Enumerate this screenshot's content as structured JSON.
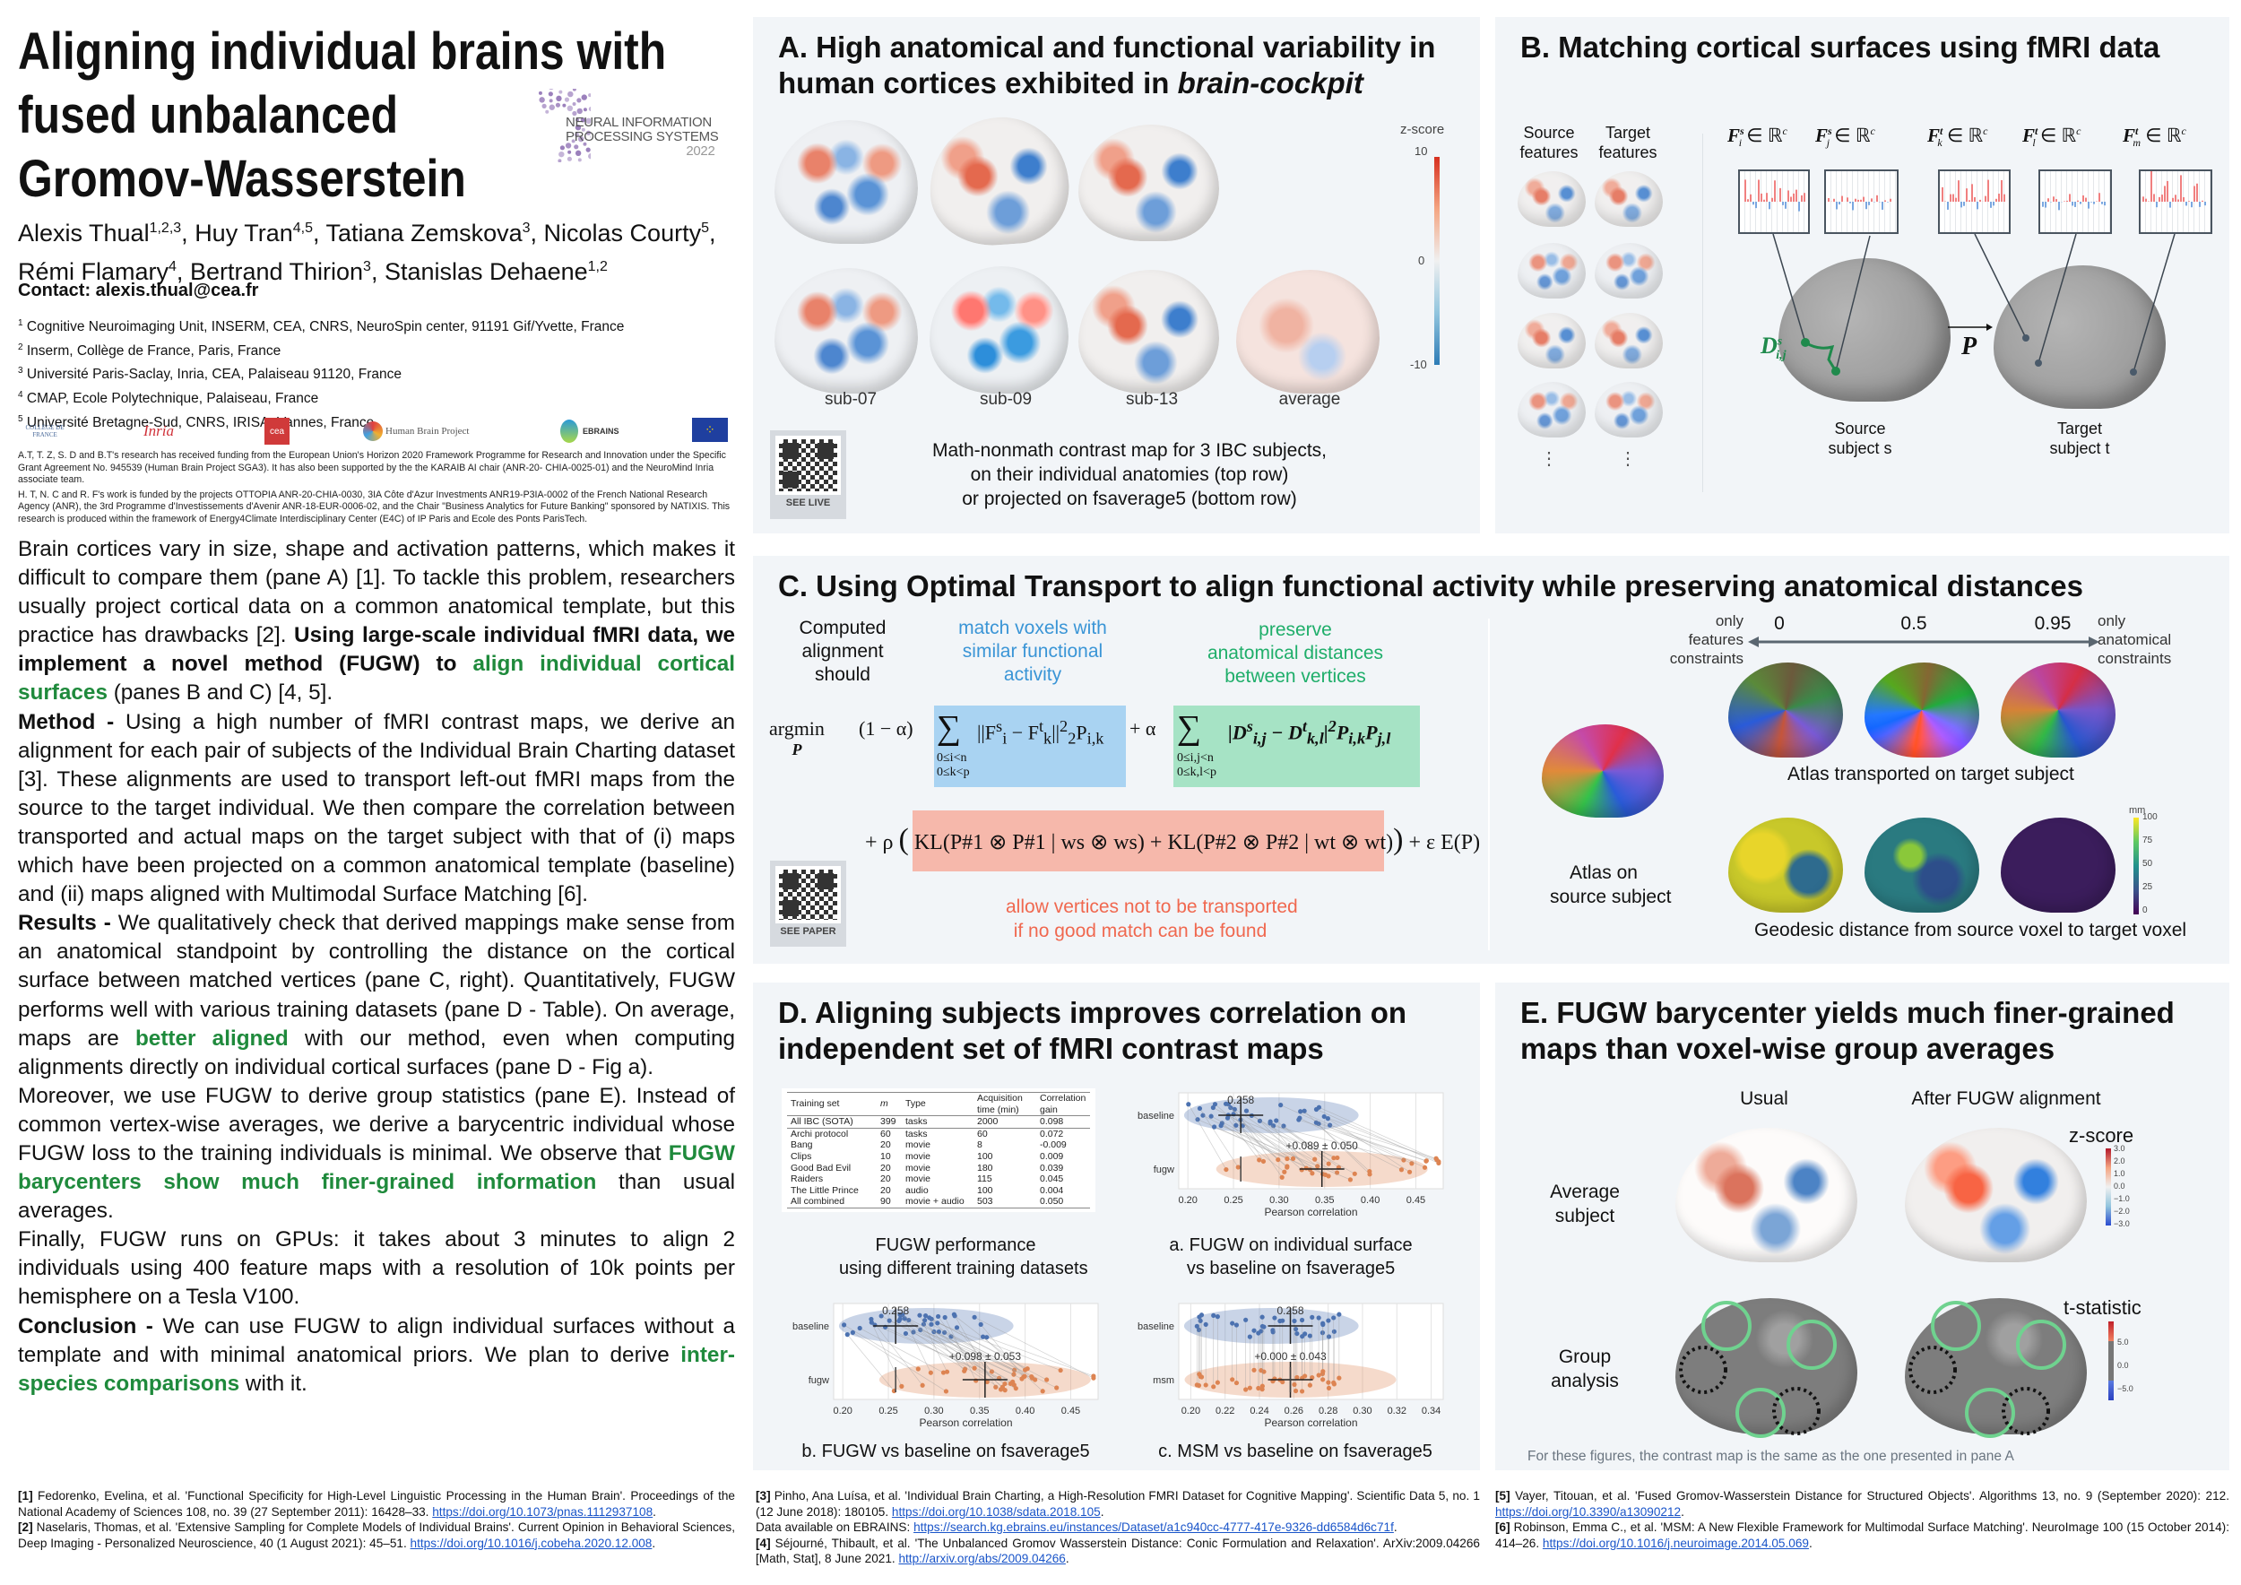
{
  "left": {
    "title_lines": [
      "Aligning individual brains with",
      "fused unbalanced",
      "Gromov-Wasserstein"
    ],
    "conference_logo": {
      "line1": "NEURAL INFORMATION",
      "line2": "PROCESSING SYSTEMS",
      "year": "2022",
      "color": "#8b6bb1"
    },
    "authors": [
      {
        "name": "Alexis Thual",
        "aff": "1,2,3"
      },
      {
        "name": "Huy Tran",
        "aff": "4,5"
      },
      {
        "name": "Tatiana Zemskova",
        "aff": "3"
      },
      {
        "name": "Nicolas Courty",
        "aff": "5"
      },
      {
        "name": "Rémi Flamary",
        "aff": "4"
      },
      {
        "name": "Bertrand Thirion",
        "aff": "3"
      },
      {
        "name": "Stanislas Dehaene",
        "aff": "1,2"
      }
    ],
    "contact": "Contact: alexis.thual@cea.fr",
    "affiliations": [
      {
        "n": "1",
        "text": "Cognitive Neuroimaging Unit, INSERM, CEA, CNRS, NeuroSpin center, 91191 Gif/Yvette, France"
      },
      {
        "n": "2",
        "text": "Inserm, Collège de France, Paris, France"
      },
      {
        "n": "3",
        "text": "Université Paris-Saclay, Inria, CEA, Palaiseau 91120, France"
      },
      {
        "n": "4",
        "text": "CMAP, Ecole Polytechnique, Palaiseau, France"
      },
      {
        "n": "5",
        "text": "Université Bretagne-Sud, CNRS, IRISA, Vannes, France"
      }
    ],
    "logos": [
      "COLLÈGE DE FRANCE",
      "Inria",
      "cea",
      "Human Brain Project",
      "EBRAINS",
      "European Union"
    ],
    "funding": [
      "A.T, T. Z, S. D and B.T's research has received funding from the European Union's Horizon 2020 Framework Programme for Research and Innovation under the Specific Grant Agreement No. 945539 (Human Brain Project SGA3). It has also been supported by the the KARAIB AI chair (ANR-20- CHIA-0025-01) and the NeuroMind Inria associate team.",
      "H. T, N. C and R. F's work is funded by the projects OTTOPIA ANR-20-CHIA-0030, 3IA Côte d'Azur Investments ANR19-P3IA-0002 of the French National Research Agency (ANR), the 3rd Programme d'Investissements d'Avenir ANR-18-EUR-0006-02, and the Chair \"Business Analytics for Future Banking\" sponsored by NATIXIS. This research is produced within the framework of Energy4Climate Interdisciplinary Center (E4C) of IP Paris and Ecole des Ponts ParisTech."
    ],
    "body": [
      [
        {
          "t": "Brain cortices vary in size, shape and activation patterns, which makes it difficult to compare them (pane A) [1]. To tackle this problem, researchers usually project cortical data on a common anatomical template, but this practice has drawbacks [2]. "
        },
        {
          "t": "Using large-scale individual fMRI data, we implement a novel method (FUGW) to ",
          "s": "b"
        },
        {
          "t": "align individual cortical surfaces",
          "s": "g"
        },
        {
          "t": " (panes B and C) [4, 5]."
        }
      ],
      [
        {
          "t": "Method - ",
          "s": "b"
        },
        {
          "t": "Using a high number of fMRI contrast maps, we derive an alignment for each pair of subjects of the Individual Brain Charting dataset [3]. These alignments are used to transport left-out fMRI maps from the source to the target individual. We then compare the correlation between transported and actual maps on the target subject with that of (i) maps which have been projected on a common anatomical template (baseline) and (ii) maps aligned with Multimodal Surface Matching [6]."
        }
      ],
      [
        {
          "t": "Results - ",
          "s": "b"
        },
        {
          "t": "We qualitatively check that derived mappings make sense from an anatomical standpoint by controlling the distance on the cortical surface between matched vertices (pane C, right). Quantitatively, FUGW performs well with various training datasets (pane D - Table). On average, maps are "
        },
        {
          "t": "better aligned",
          "s": "g"
        },
        {
          "t": " with our method, even when computing alignments directly on individual cortical surfaces (pane D - Fig a)."
        }
      ],
      [
        {
          "t": "Moreover, we use FUGW to derive group statistics (pane E). Instead of common vertex-wise averages, we derive a barycentric individual whose FUGW loss to the training individuals is minimal. We observe that "
        },
        {
          "t": "FUGW barycenters show much finer-grained information",
          "s": "g"
        },
        {
          "t": " than usual averages."
        }
      ],
      [
        {
          "t": "Finally, FUGW runs on GPUs: it takes about 3 minutes to align 2 individuals using 400 feature maps with a resolution of 10k points per hemisphere on a Tesla V100."
        }
      ],
      [
        {
          "t": "Conclusion - ",
          "s": "b"
        },
        {
          "t": "We can use FUGW to align individual surfaces without a template and with minimal anatomical priors. We plan to derive "
        },
        {
          "t": "inter-species comparisons",
          "s": "g"
        },
        {
          "t": " with it."
        }
      ]
    ]
  },
  "paneA": {
    "title_lines": [
      "A. High anatomical and functional variability in",
      "human cortices exhibited in "
    ],
    "title_italic": "brain-cockpit",
    "subjects": [
      "sub-07",
      "sub-09",
      "sub-13",
      "average"
    ],
    "colorbar": {
      "label": "z-score",
      "max": "10",
      "mid": "0",
      "min": "-10"
    },
    "qr_label": "SEE LIVE",
    "caption": [
      "Math-nonmath contrast map for 3 IBC subjects,",
      "on their individual anatomies (top row)",
      "or projected on fsaverage5 (bottom row)"
    ]
  },
  "paneB": {
    "title": "B. Matching cortical surfaces using fMRI data",
    "source_features": [
      "Source",
      "features"
    ],
    "target_features": [
      "Target",
      "features"
    ],
    "ellipsis": "⋮",
    "feature_labels": [
      {
        "base": "F",
        "sub": "i",
        "sup": "s",
        "rest": " ∈ ℝ",
        "exp": "c"
      },
      {
        "base": "F",
        "sub": "j",
        "sup": "s",
        "rest": " ∈ ℝ",
        "exp": "c"
      },
      {
        "base": "F",
        "sub": "k",
        "sup": "t",
        "rest": " ∈ ℝ",
        "exp": "c"
      },
      {
        "base": "F",
        "sub": "l",
        "sup": "t",
        "rest": " ∈ ℝ",
        "exp": "c"
      },
      {
        "base": "F",
        "sub": "m",
        "sup": "t",
        "rest": " ∈ ℝ",
        "exp": "c"
      }
    ],
    "distance_label": {
      "base": "D",
      "sub": "i,j",
      "sup": "s"
    },
    "transport_label": "P",
    "source_subject": [
      "Source",
      "subject s"
    ],
    "target_subject": [
      "Target",
      "subject t"
    ],
    "colors": {
      "green": "#1f8a4c",
      "red": "#f08080",
      "blue": "#7aa7e0"
    }
  },
  "paneC": {
    "title": "C. Using Optimal Transport to align functional activity while preserving anatomical distances",
    "computed": [
      "Computed",
      "alignment",
      "should"
    ],
    "match_text": [
      "match voxels with",
      "similar functional",
      "activity"
    ],
    "preserve_text": [
      "preserve",
      "anatomical distances",
      "between vertices"
    ],
    "allow_text": [
      "allow vertices not to be transported",
      "if no good match can be found"
    ],
    "formula": {
      "argmin": "argmin",
      "argmin_sub": "P",
      "one_minus_alpha": "(1 − α)",
      "wass_term": "||F",
      "wass_range": [
        "0≤i<n",
        "0≤k<p"
      ],
      "plus_alpha": "+ α",
      "gw_range": [
        "0≤i,j<n",
        "0≤k,l<p"
      ],
      "plus_rho": "+ ρ",
      "kl1": "KL(P#1 ⊗ P#1 | ws ⊗ ws)",
      "plus": "+",
      "kl2": "KL(P#2 ⊗ P#2 | wt ⊗ wt)",
      "entropy": "+ ε E(P)"
    },
    "qr_label": "SEE PAPER",
    "only_features": [
      "only",
      "features",
      "constraints"
    ],
    "only_anatomical": [
      "only",
      "anatomical",
      "constraints"
    ],
    "alphas": [
      "0",
      "0.5",
      "0.95"
    ],
    "atlas_source": [
      "Atlas on",
      "source subject"
    ],
    "atlas_transported": "Atlas transported on target subject",
    "geodesic": "Geodesic distance from source voxel  to target voxel",
    "mm_colorbar": {
      "unit": "mm",
      "ticks": [
        "100",
        "75",
        "50",
        "25",
        "0"
      ]
    },
    "colors": {
      "blue_box": "#a9d3f2",
      "green_box": "#a6e3c5",
      "red_box": "#f6b8ab",
      "blue_text": "#3a95d6",
      "green_text": "#1fae6a",
      "red_text": "#f0684f"
    }
  },
  "paneD": {
    "title_lines": [
      "D. Aligning subjects improves correlation on",
      "independent set of fMRI contrast maps"
    ],
    "table": {
      "headers": [
        "Training set",
        "m",
        "Type",
        "Acquisition time (min)",
        "Correlation gain"
      ],
      "rows": [
        [
          "All IBC (SOTA)",
          "399",
          "tasks",
          "2000",
          "0.098"
        ],
        [
          "Archi protocol",
          "60",
          "tasks",
          "60",
          "0.072"
        ],
        [
          "Bang",
          "20",
          "movie",
          "8",
          "-0.009"
        ],
        [
          "Clips",
          "10",
          "movie",
          "100",
          "0.009"
        ],
        [
          "Good Bad Evil",
          "20",
          "movie",
          "180",
          "0.039"
        ],
        [
          "Raiders",
          "20",
          "movie",
          "115",
          "0.045"
        ],
        [
          "The Little Prince",
          "20",
          "audio",
          "100",
          "0.004"
        ],
        [
          "All combined",
          "90",
          "movie + audio",
          "503",
          "0.050"
        ]
      ]
    },
    "table_caption": [
      "FUGW performance",
      "using different training datasets"
    ],
    "plots": [
      {
        "id": "a",
        "rows": [
          "baseline",
          "fugw"
        ],
        "baseline_mean": "0.258",
        "gain": "+0.089 ± 0.050",
        "xlabel": "Pearson correlation",
        "xticks": [
          "0.20",
          "0.25",
          "0.30",
          "0.35",
          "0.40",
          "0.45"
        ],
        "xlim": [
          0.19,
          0.48
        ],
        "means": [
          0.258,
          0.347
        ],
        "caption": [
          "a.  FUGW on individual surface",
          "vs baseline on fsaverage5"
        ]
      },
      {
        "id": "b",
        "rows": [
          "baseline",
          "fugw"
        ],
        "baseline_mean": "0.258",
        "gain": "+0.098 ± 0.053",
        "xlabel": "Pearson correlation",
        "xticks": [
          "0.20",
          "0.25",
          "0.30",
          "0.35",
          "0.40",
          "0.45"
        ],
        "xlim": [
          0.19,
          0.48
        ],
        "means": [
          0.258,
          0.356
        ],
        "caption": [
          "b. FUGW vs baseline on fsaverage5"
        ]
      },
      {
        "id": "c",
        "rows": [
          "baseline",
          "msm"
        ],
        "baseline_mean": "0.258",
        "gain": "+0.000 ± 0.043",
        "xlabel": "Pearson correlation",
        "xticks": [
          "0.20",
          "0.22",
          "0.24",
          "0.26",
          "0.28",
          "0.30",
          "0.32",
          "0.34"
        ],
        "xlim": [
          0.193,
          0.347
        ],
        "means": [
          0.258,
          0.258
        ],
        "caption": [
          "c. MSM vs baseline on fsaverage5"
        ]
      }
    ],
    "colors": {
      "baseline": "#4c72b0",
      "aligned": "#dd8452"
    }
  },
  "paneE": {
    "title_lines": [
      "E. FUGW barycenter yields much finer-grained",
      "maps than voxel-wise group averages"
    ],
    "columns": [
      "Usual",
      "After FUGW alignment"
    ],
    "rows": [
      [
        "Average",
        "subject"
      ],
      [
        "Group",
        "analysis"
      ]
    ],
    "zscore": {
      "label": "z-score",
      "ticks": [
        "3.0",
        "2.0",
        "1.0",
        "0.0",
        "−1.0",
        "−2.0",
        "−3.0"
      ]
    },
    "tstat": {
      "label": "t-statistic",
      "ticks": [
        "5.0",
        "0.0",
        "−5.0"
      ]
    },
    "footnote": "For these figures, the contrast map is the same as the one presented in pane A",
    "colors": {
      "circle_green": "#6fd28f",
      "circle_dotted": "#111111"
    }
  },
  "references": [
    [
      {
        "n": "[1]",
        "text": " Fedorenko, Evelina, et al. 'Functional Specificity for High-Level Linguistic Processing in the Human Brain'. Proceedings of the National Academy of Sciences 108, no. 39 (27 September 2011): 16428–33. ",
        "link": "https://doi.org/10.1073/pnas.1112937108"
      },
      {
        "n": "[2]",
        "text": " Naselaris, Thomas, et al. 'Extensive Sampling for Complete Models of Individual Brains'. Current Opinion in Behavioral Sciences, Deep Imaging - Personalized Neuroscience, 40 (1 August 2021): 45–51. ",
        "link": "https://doi.org/10.1016/j.cobeha.2020.12.008"
      }
    ],
    [
      {
        "n": "[3]",
        "text": " Pinho, Ana Luísa, et al. 'Individual Brain Charting, a High-Resolution FMRI Dataset for Cognitive Mapping'. Scientific Data 5, no. 1 (12 June 2018): 180105. ",
        "link": "https://doi.org/10.1038/sdata.2018.105"
      },
      {
        "n": "",
        "text": "Data available on EBRAINS: ",
        "link": "https://search.kg.ebrains.eu/instances/Dataset/a1c940cc-4777-417e-9326-dd6584d6c71f"
      },
      {
        "n": "[4]",
        "text": " Séjourné, Thibault, et al. 'The Unbalanced Gromov Wasserstein Distance: Conic Formulation and Relaxation'. ArXiv:2009.04266 [Math, Stat], 8 June 2021. ",
        "link": "http://arxiv.org/abs/2009.04266"
      }
    ],
    [
      {
        "n": "[5]",
        "text": " Vayer, Titouan, et al. 'Fused Gromov-Wasserstein Distance for Structured Objects'. Algorithms 13, no. 9 (September 2020): 212. ",
        "link": "https://doi.org/10.3390/a13090212"
      },
      {
        "n": "[6]",
        "text": " Robinson, Emma C., et al. 'MSM: A New Flexible Framework for Multimodal Surface Matching'. NeuroImage 100 (15 October 2014): 414–26. ",
        "link": "https://doi.org/10.1016/j.neuroimage.2014.05.069"
      }
    ]
  ]
}
